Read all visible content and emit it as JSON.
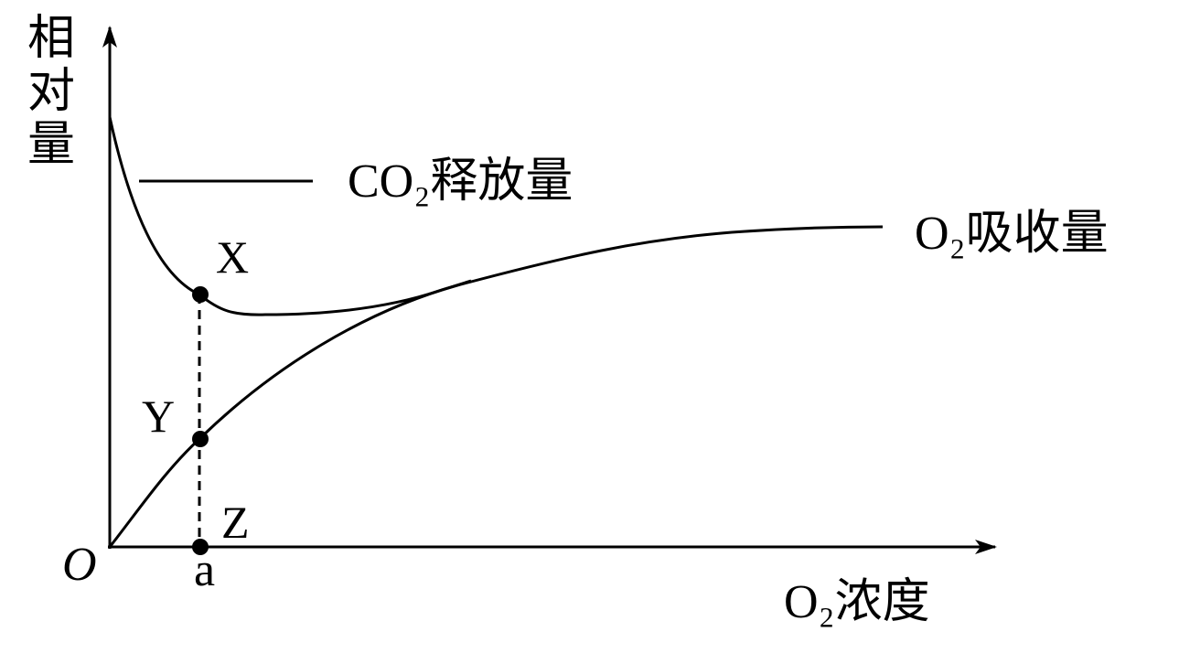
{
  "axes": {
    "y_label": "相对量",
    "x_label": "O₂浓度",
    "origin": "O",
    "x_mark": "a"
  },
  "curves": {
    "co2": "CO₂释放量",
    "o2": "O₂吸收量"
  },
  "points": {
    "x": "X",
    "y": "Y",
    "z": "Z"
  }
}
